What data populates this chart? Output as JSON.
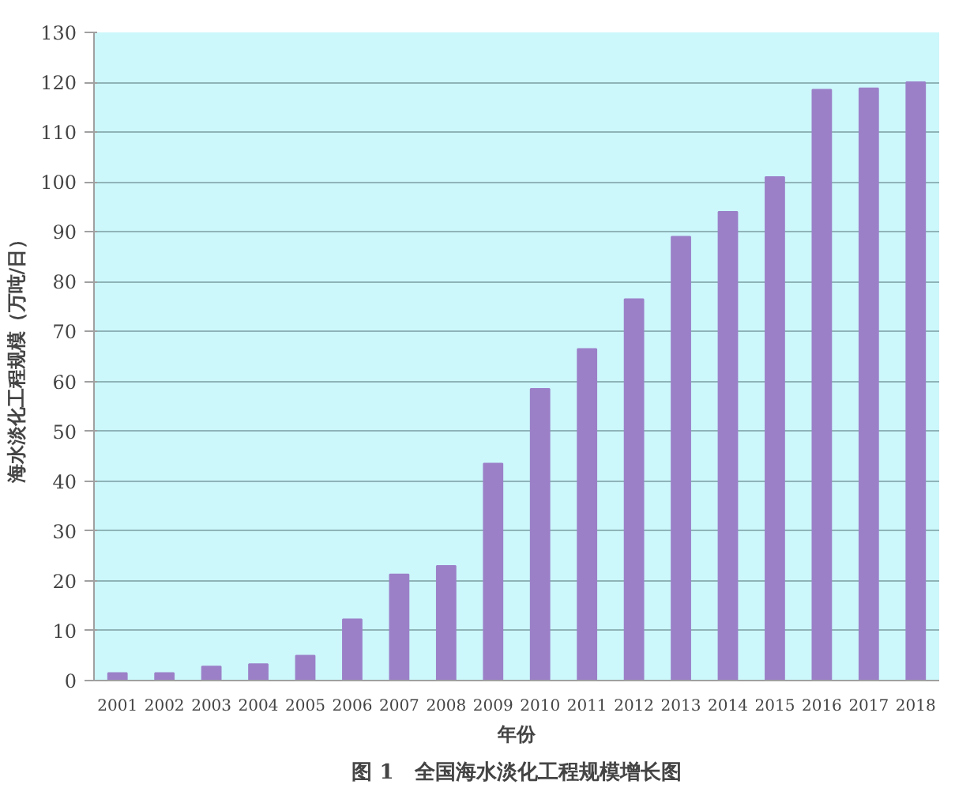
{
  "chart_data": {
    "type": "bar",
    "title": "图 1　全国海水淡化工程规模增长图",
    "xlabel": "年份",
    "ylabel": "海水淡化工程规模（万吨/日）",
    "categories": [
      "2001",
      "2002",
      "2003",
      "2004",
      "2005",
      "2006",
      "2007",
      "2008",
      "2009",
      "2010",
      "2011",
      "2012",
      "2013",
      "2014",
      "2015",
      "2016",
      "2017",
      "2018"
    ],
    "values": [
      1.5,
      1.5,
      2.8,
      3.3,
      5,
      12.3,
      21.3,
      23,
      43.5,
      58.5,
      66.5,
      76.5,
      89,
      94,
      101,
      118.5,
      118.8,
      120
    ],
    "color": "#9b80c8",
    "ylim": [
      0,
      130
    ],
    "yticks": [
      0,
      10,
      20,
      30,
      40,
      50,
      60,
      70,
      80,
      90,
      100,
      110,
      120,
      130
    ],
    "grid": "y"
  }
}
